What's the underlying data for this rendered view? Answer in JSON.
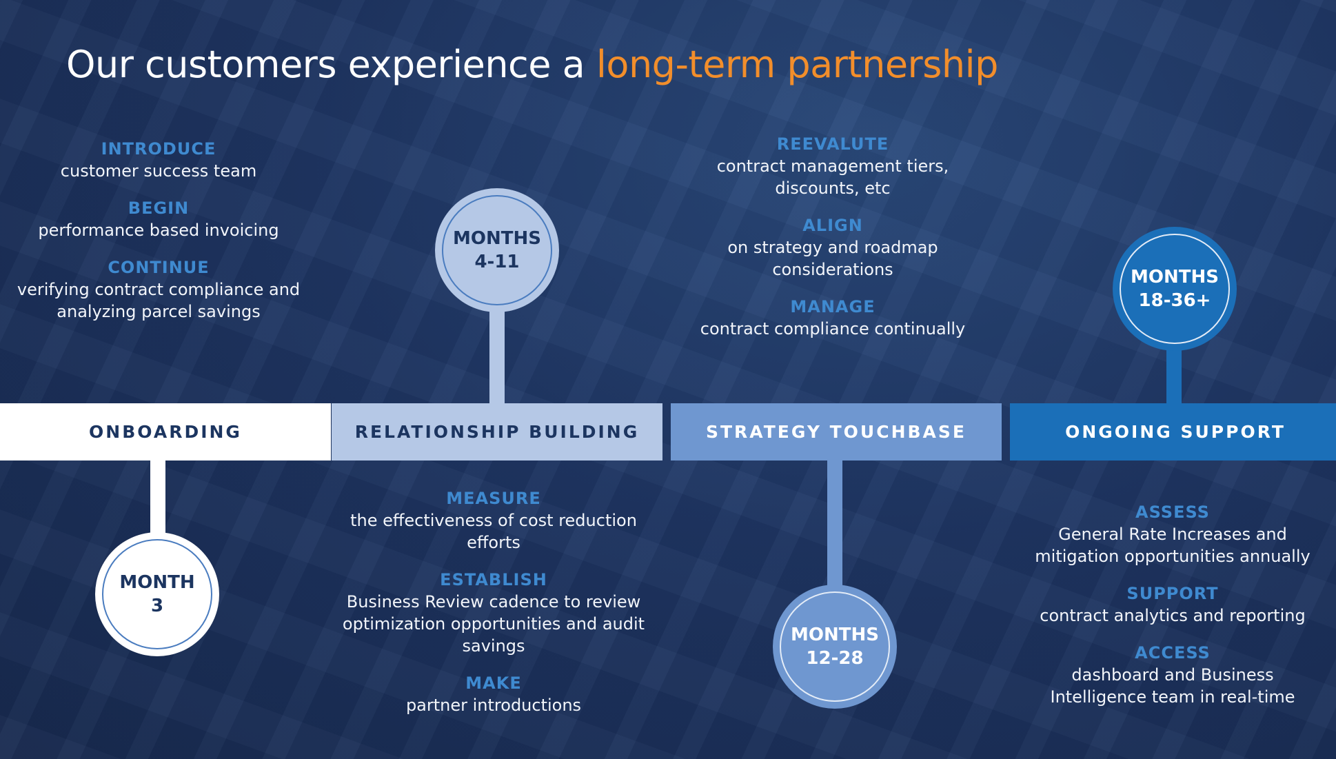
{
  "title": {
    "main": "Our customers experience a ",
    "accent": "long-term partnership"
  },
  "colors": {
    "background": "#1c2f55",
    "accent_orange": "#f28e2b",
    "keyword_blue": "#3f8ad0",
    "phase1": "#ffffff",
    "phase2": "#b5c8e6",
    "phase3": "#6f97d0",
    "phase4": "#1b6fb8"
  },
  "phases": [
    {
      "label": "ONBOARDING",
      "milestone": [
        "MONTH",
        "3"
      ],
      "items": [
        {
          "keyword": "INTRODUCE",
          "text": "customer success team"
        },
        {
          "keyword": "BEGIN",
          "text": "performance based invoicing"
        },
        {
          "keyword": "CONTINUE",
          "text": "verifying contract compliance and analyzing parcel savings"
        }
      ]
    },
    {
      "label": "RELATIONSHIP BUILDING",
      "milestone": [
        "MONTHS",
        "4-11"
      ],
      "items": [
        {
          "keyword": "MEASURE",
          "text": "the effectiveness of cost reduction efforts"
        },
        {
          "keyword": "ESTABLISH",
          "text": "Business Review cadence to review optimization opportunities and audit savings"
        },
        {
          "keyword": "MAKE",
          "text": "partner introductions"
        }
      ]
    },
    {
      "label": "STRATEGY TOUCHBASE",
      "milestone": [
        "MONTHS",
        "12-28"
      ],
      "items": [
        {
          "keyword": "REEVALUTE",
          "text": "contract management tiers, discounts, etc"
        },
        {
          "keyword": "ALIGN",
          "text": "on strategy and roadmap considerations"
        },
        {
          "keyword": "MANAGE",
          "text": "contract compliance continually"
        }
      ]
    },
    {
      "label": "ONGOING SUPPORT",
      "milestone": [
        "MONTHS",
        "18-36+"
      ],
      "items": [
        {
          "keyword": "ASSESS",
          "text": "General Rate Increases and mitigation opportunities annually"
        },
        {
          "keyword": "SUPPORT",
          "text": "contract analytics and reporting"
        },
        {
          "keyword": "ACCESS",
          "text": "dashboard and Business Intelligence team in real-time"
        }
      ]
    }
  ]
}
